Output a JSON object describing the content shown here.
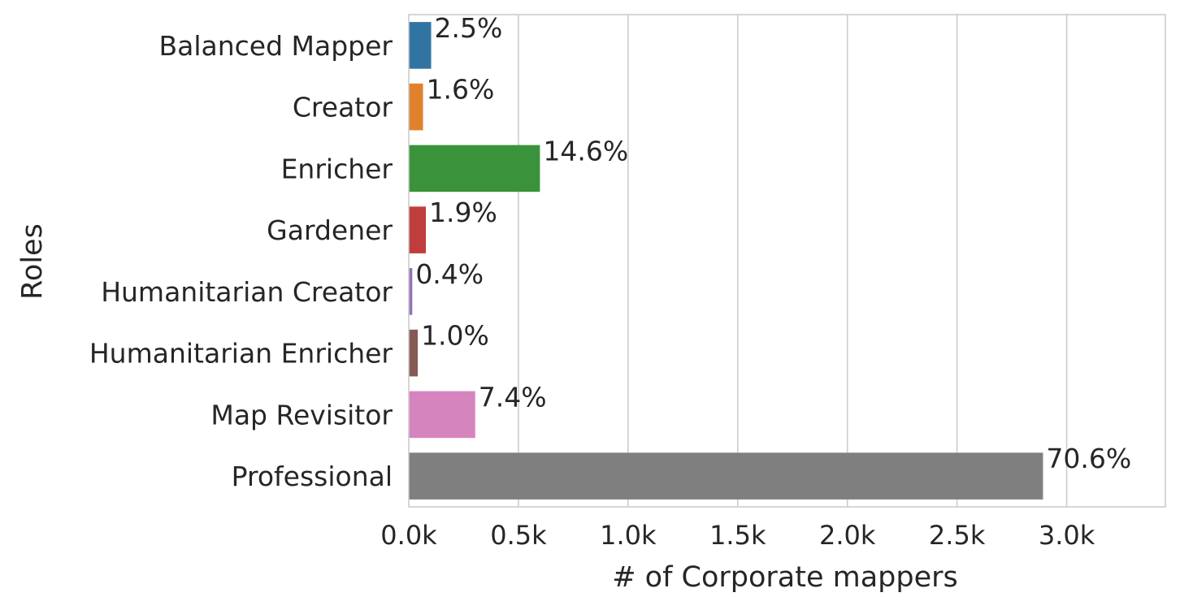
{
  "chart_data": {
    "type": "bar",
    "orientation": "horizontal",
    "xlabel": "# of Corporate mappers",
    "ylabel": "Roles",
    "xlim": [
      0,
      3450
    ],
    "xticks": [
      0,
      500,
      1000,
      1500,
      2000,
      2500,
      3000
    ],
    "xtick_labels": [
      "0.0k",
      "0.5k",
      "1.0k",
      "1.5k",
      "2.0k",
      "2.5k",
      "3.0k"
    ],
    "grid": "vertical",
    "categories": [
      "Balanced Mapper",
      "Creator",
      "Enricher",
      "Gardener",
      "Humanitarian Creator",
      "Humanitarian Enricher",
      "Map Revisitor",
      "Professional"
    ],
    "values": [
      102,
      65,
      598,
      78,
      16,
      41,
      303,
      2892
    ],
    "bar_labels": [
      "2.5%",
      "1.6%",
      "14.6%",
      "1.9%",
      "0.4%",
      "1.0%",
      "7.4%",
      "70.6%"
    ],
    "colors": [
      "#3274a1",
      "#e1812c",
      "#3a923a",
      "#c03d3e",
      "#9372b2",
      "#845b53",
      "#d684bd",
      "#7f7f7f"
    ]
  }
}
